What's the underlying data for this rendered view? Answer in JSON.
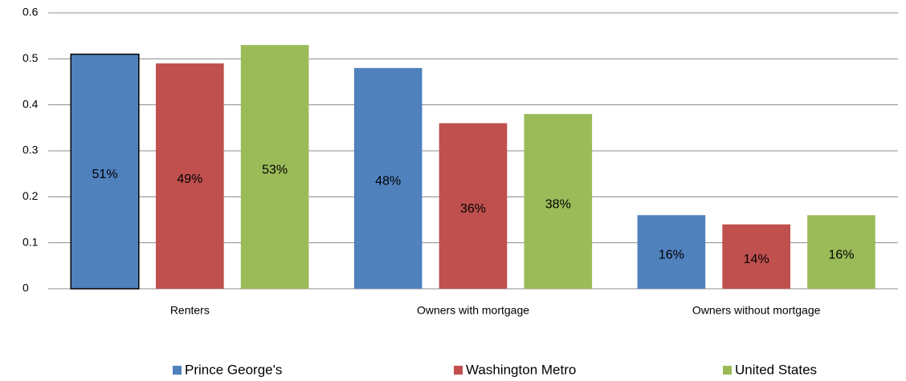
{
  "chart_data": {
    "type": "bar",
    "categories": [
      "Renters",
      "Owners with mortgage",
      "Owners without mortgage"
    ],
    "series": [
      {
        "name": "Prince George's",
        "color": "#4f81bd",
        "values": [
          0.51,
          0.48,
          0.16
        ],
        "value_labels": [
          "51%",
          "48%",
          "16%"
        ]
      },
      {
        "name": "Washington Metro",
        "color": "#c0504d",
        "values": [
          0.49,
          0.36,
          0.14
        ],
        "value_labels": [
          "49%",
          "36%",
          "14%"
        ]
      },
      {
        "name": "United States",
        "color": "#9bbb59",
        "values": [
          0.53,
          0.38,
          0.16
        ],
        "value_labels": [
          "53%",
          "38%",
          "16%"
        ]
      }
    ],
    "ylim": [
      0,
      0.6
    ],
    "yticks": [
      0,
      0.1,
      0.2,
      0.3,
      0.4,
      0.5,
      0.6
    ],
    "grid": true,
    "legend": "bottom"
  }
}
